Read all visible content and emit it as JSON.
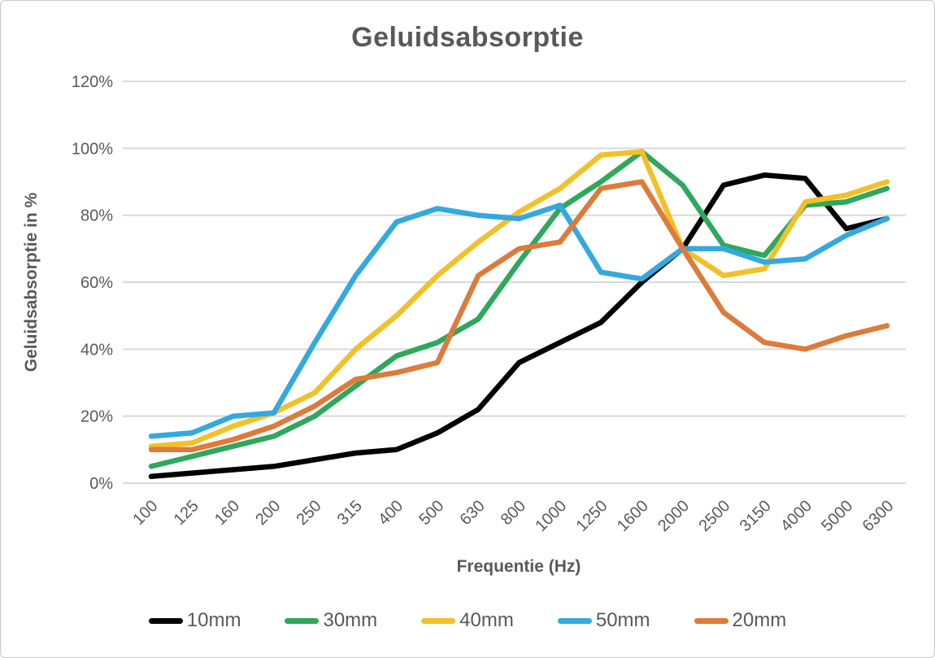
{
  "chart_data": {
    "type": "line",
    "title": "Geluidsabsorptie",
    "xlabel": "Frequentie (Hz)",
    "ylabel": "Geluidsabsorptie in %",
    "categories": [
      "100",
      "125",
      "160",
      "200",
      "250",
      "315",
      "400",
      "500",
      "630",
      "800",
      "1000",
      "1250",
      "1600",
      "2000",
      "2500",
      "3150",
      "4000",
      "5000",
      "6300"
    ],
    "ylim": [
      0,
      120
    ],
    "yticks": [
      {
        "value": 0,
        "label": "0%"
      },
      {
        "value": 20,
        "label": "20%"
      },
      {
        "value": 40,
        "label": "40%"
      },
      {
        "value": 60,
        "label": "60%"
      },
      {
        "value": 80,
        "label": "80%"
      },
      {
        "value": 100,
        "label": "100%"
      },
      {
        "value": 120,
        "label": "120%"
      }
    ],
    "grid": "horizontal",
    "legend_position": "bottom",
    "series": [
      {
        "name": "10mm",
        "color": "#000000",
        "values": [
          2,
          3,
          4,
          5,
          7,
          9,
          10,
          15,
          22,
          36,
          42,
          48,
          60,
          70,
          89,
          92,
          91,
          76,
          79
        ]
      },
      {
        "name": "30mm",
        "color": "#2FA75C",
        "values": [
          5,
          8,
          11,
          14,
          20,
          29,
          38,
          42,
          49,
          66,
          82,
          90,
          99,
          89,
          71,
          68,
          83,
          84,
          88
        ]
      },
      {
        "name": "40mm",
        "color": "#F2C029",
        "values": [
          11,
          12,
          17,
          21,
          27,
          40,
          50,
          62,
          72,
          81,
          88,
          98,
          99,
          70,
          62,
          64,
          84,
          86,
          90
        ]
      },
      {
        "name": "50mm",
        "color": "#33A9DE",
        "values": [
          14,
          15,
          20,
          21,
          42,
          62,
          78,
          82,
          80,
          79,
          83,
          63,
          61,
          70,
          70,
          66,
          67,
          74,
          79
        ]
      },
      {
        "name": "20mm",
        "color": "#DC7B3B",
        "values": [
          10,
          10,
          13,
          17,
          23,
          31,
          33,
          36,
          62,
          70,
          72,
          88,
          90,
          70,
          51,
          42,
          40,
          44,
          47
        ]
      }
    ]
  },
  "colors": {
    "title_text": "#595959",
    "axis_text": "#595959",
    "gridline": "#D9D9D9",
    "background": "#FFFFFF",
    "border": "#C9C9C9"
  }
}
